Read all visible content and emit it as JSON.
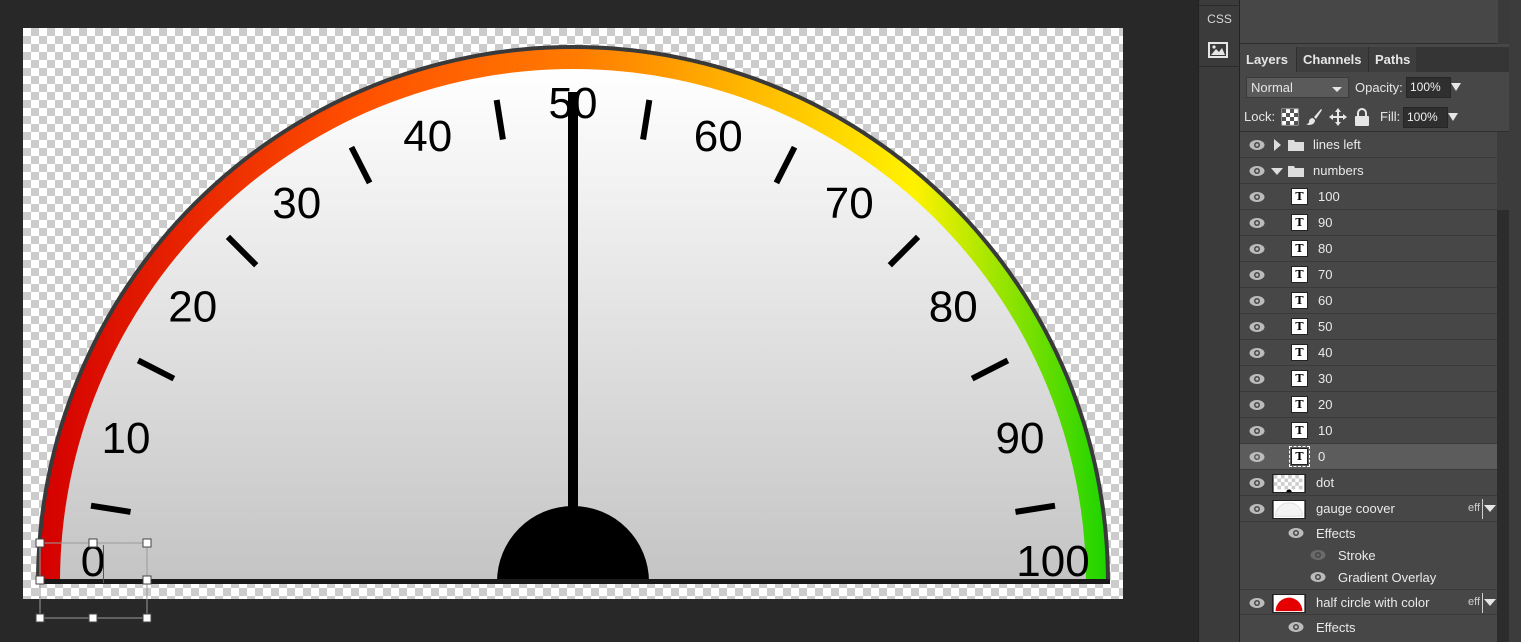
{
  "canvas": {
    "gauge": {
      "numbers": [
        "0",
        "10",
        "20",
        "30",
        "40",
        "50",
        "60",
        "70",
        "80",
        "90",
        "100"
      ],
      "needle_value": 50,
      "colors": {
        "arc_start": "#d40000",
        "arc_orange": "#ff7a00",
        "arc_yellow": "#fff200",
        "arc_end": "#1ed400",
        "face_top": "#ffffff",
        "face_bottom": "#c4c4c4",
        "outline": "#3a3a3a",
        "ink": "#000000"
      }
    }
  },
  "toolstrip": {
    "css_label": "CSS",
    "image_icon": "image-icon"
  },
  "panel": {
    "tabs": [
      {
        "label": "Layers",
        "active": true
      },
      {
        "label": "Channels",
        "active": false
      },
      {
        "label": "Paths",
        "active": false
      }
    ],
    "blend_mode": "Normal",
    "opacity_label": "Opacity:",
    "opacity_value": "100%",
    "lock_label": "Lock:",
    "fill_label": "Fill:",
    "fill_value": "100%",
    "layers": [
      {
        "name": "lines left",
        "kind": "folder",
        "expanded": false
      },
      {
        "name": "numbers",
        "kind": "folder",
        "expanded": true
      },
      {
        "name": "100",
        "kind": "text"
      },
      {
        "name": "90",
        "kind": "text"
      },
      {
        "name": "80",
        "kind": "text"
      },
      {
        "name": "70",
        "kind": "text"
      },
      {
        "name": "60",
        "kind": "text"
      },
      {
        "name": "50",
        "kind": "text"
      },
      {
        "name": "40",
        "kind": "text"
      },
      {
        "name": "30",
        "kind": "text"
      },
      {
        "name": "20",
        "kind": "text"
      },
      {
        "name": "10",
        "kind": "text"
      },
      {
        "name": "0",
        "kind": "text",
        "selected": true
      },
      {
        "name": "dot",
        "kind": "image"
      },
      {
        "name": "gauge coover",
        "kind": "image",
        "eff": "eff"
      },
      {
        "name": "half circle with color",
        "kind": "image",
        "eff": "eff"
      }
    ],
    "effects_label": "Effects",
    "gauge_cover_effects": [
      "Stroke",
      "Gradient Overlay"
    ],
    "half_circle_effects_label": "Effects"
  }
}
